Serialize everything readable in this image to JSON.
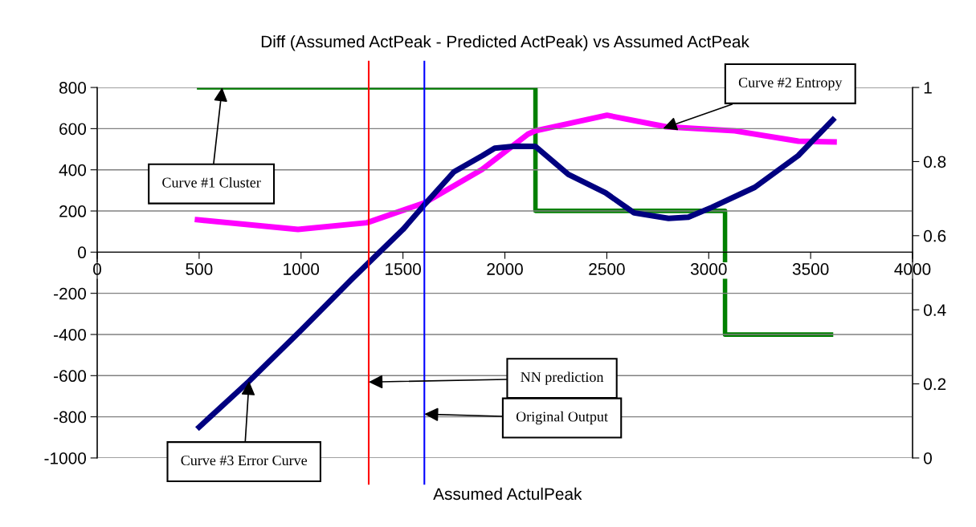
{
  "chart_data": {
    "type": "line",
    "title": "Diff (Assumed ActPeak - Predicted ActPeak) vs Assumed ActPeak",
    "xlabel": "Assumed ActulPeak",
    "xlim": [
      0,
      4000
    ],
    "xticks": [
      0,
      500,
      1000,
      1500,
      2000,
      2500,
      3000,
      3500,
      4000
    ],
    "ylim": [
      -1000,
      800
    ],
    "yticks": [
      -1000,
      -800,
      -600,
      -400,
      -200,
      0,
      200,
      400,
      600,
      800
    ],
    "y2lim": [
      0,
      1
    ],
    "y2ticks": [
      0,
      0.2,
      0.4,
      0.6,
      0.8,
      1
    ],
    "grid": "y",
    "legend": false,
    "series": [
      {
        "type": "step",
        "axis": "y2",
        "color": "#008000",
        "x": [
          500,
          2150,
          3080,
          3600
        ],
        "values": [
          1,
          0.667,
          0.333,
          0.333
        ]
      },
      {
        "axis": "y2",
        "color": "#ff00ff",
        "x": [
          492,
          985,
          1324,
          1607,
          1888,
          2113,
          2149,
          2501,
          2790,
          3128,
          3440,
          3615
        ],
        "values": [
          0.643,
          0.617,
          0.635,
          0.689,
          0.779,
          0.874,
          0.883,
          0.925,
          0.894,
          0.883,
          0.855,
          0.853
        ]
      },
      {
        "axis": "y",
        "color": "#000080",
        "x": [
          500,
          745,
          1000,
          1250,
          1500,
          1605,
          1750,
          1890,
          1950,
          2050,
          2149,
          2311,
          2494,
          2634,
          2803,
          2900,
          3016,
          3226,
          3439,
          3609
        ],
        "values": [
          -850,
          -627,
          -380,
          -130,
          110,
          230,
          390,
          469,
          505,
          515,
          514,
          378,
          288,
          191,
          164,
          170,
          218,
          315,
          469,
          643
        ]
      }
    ],
    "ref_lines": [
      {
        "axis": "x",
        "value": 1332,
        "color": "#ff0000"
      },
      {
        "axis": "x",
        "value": 1605,
        "color": "#0000ff"
      }
    ],
    "annotations": [
      {
        "text": "Curve #1 Cluster",
        "x": 613,
        "y": 800
      },
      {
        "text": "Curve #2 Entropy",
        "x": 2776,
        "y": 601
      },
      {
        "text": "Curve #3 Error Curve",
        "x": 745,
        "y": -627
      },
      {
        "text": "NN prediction",
        "x": 1332,
        "y": -631
      },
      {
        "text": "Original Output",
        "x": 1605,
        "y": -787
      }
    ]
  }
}
